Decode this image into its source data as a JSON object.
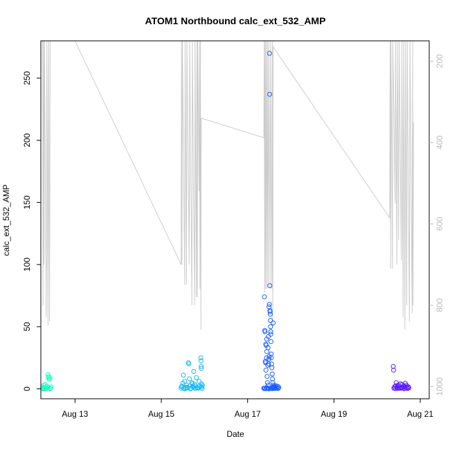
{
  "chart_data": {
    "type": "scatter",
    "title": "ATOM1 Northbound calc_ext_532_AMP",
    "xlabel": "Date",
    "ylabel": "calc_ext_532_AMP",
    "x_axis": {
      "type": "date",
      "range": [
        "2023-08-12T05:00",
        "2023-08-21T05:00"
      ],
      "ticks": [
        {
          "date": "2023-08-13",
          "label": "Aug 13"
        },
        {
          "date": "2023-08-15",
          "label": "Aug 15"
        },
        {
          "date": "2023-08-17",
          "label": "Aug 17"
        },
        {
          "date": "2023-08-19",
          "label": "Aug 19"
        },
        {
          "date": "2023-08-21",
          "label": "Aug 21"
        }
      ]
    },
    "y_axis": {
      "range": [
        -8,
        280
      ],
      "ticks": [
        0,
        50,
        100,
        150,
        200,
        250
      ]
    },
    "y2_axis": {
      "range": [
        1030,
        150
      ],
      "reversed": true,
      "ticks": [
        200,
        400,
        600,
        800,
        1000
      ],
      "color": "#bbbbbb"
    },
    "series": [
      {
        "kind": "points",
        "color": "#1affc0",
        "points": [
          [
            "2023-08-12T06:00",
            0.5
          ],
          [
            "2023-08-12T06:20",
            1.2
          ],
          [
            "2023-08-12T06:40",
            2.8
          ],
          [
            "2023-08-12T07:00",
            0.3
          ],
          [
            "2023-08-12T07:20",
            3.5
          ],
          [
            "2023-08-12T07:40",
            1.0
          ],
          [
            "2023-08-12T08:00",
            0.2
          ],
          [
            "2023-08-12T08:20",
            2.0
          ],
          [
            "2023-08-12T08:40",
            0.8
          ],
          [
            "2023-08-12T09:00",
            11.5
          ],
          [
            "2023-08-12T09:10",
            9.0
          ],
          [
            "2023-08-12T09:20",
            10.0
          ],
          [
            "2023-08-12T09:40",
            7.5
          ],
          [
            "2023-08-12T10:00",
            8.5
          ],
          [
            "2023-08-12T10:20",
            0.5
          ],
          [
            "2023-08-12T10:40",
            1.5
          ],
          [
            "2023-08-12T06:10",
            0.0
          ],
          [
            "2023-08-12T07:10",
            0.1
          ],
          [
            "2023-08-12T08:10",
            0.4
          ],
          [
            "2023-08-12T10:10",
            0.0
          ]
        ]
      },
      {
        "kind": "points",
        "color": "#1ab8f5",
        "points": [
          [
            "2023-08-15T11:00",
            0.5
          ],
          [
            "2023-08-15T11:30",
            2.0
          ],
          [
            "2023-08-15T12:00",
            4.5
          ],
          [
            "2023-08-15T12:30",
            0.3
          ],
          [
            "2023-08-15T13:00",
            6.0
          ],
          [
            "2023-08-15T13:30",
            1.0
          ],
          [
            "2023-08-15T14:00",
            3.0
          ],
          [
            "2023-08-15T14:30",
            0.8
          ],
          [
            "2023-08-15T15:00",
            21.0
          ],
          [
            "2023-08-15T15:20",
            20.0
          ],
          [
            "2023-08-15T15:40",
            8.0
          ],
          [
            "2023-08-15T16:00",
            2.5
          ],
          [
            "2023-08-15T16:30",
            0.5
          ],
          [
            "2023-08-15T17:00",
            5.0
          ],
          [
            "2023-08-15T17:30",
            1.5
          ],
          [
            "2023-08-15T18:00",
            14.0
          ],
          [
            "2023-08-15T18:30",
            3.5
          ],
          [
            "2023-08-15T19:00",
            0.2
          ],
          [
            "2023-08-15T19:30",
            9.0
          ],
          [
            "2023-08-15T20:00",
            1.0
          ],
          [
            "2023-08-15T20:30",
            0.5
          ],
          [
            "2023-08-15T21:00",
            6.0
          ],
          [
            "2023-08-15T21:30",
            2.0
          ],
          [
            "2023-08-15T12:15",
            11.0
          ],
          [
            "2023-08-15T13:15",
            0.0
          ],
          [
            "2023-08-15T14:15",
            1.2
          ],
          [
            "2023-08-15T16:15",
            0.1
          ],
          [
            "2023-08-15T17:15",
            4.0
          ],
          [
            "2023-08-15T19:15",
            2.2
          ],
          [
            "2023-08-15T20:15",
            0.6
          ],
          [
            "2023-08-15T11:15",
            1.8
          ],
          [
            "2023-08-15T18:15",
            0.9
          ],
          [
            "2023-08-15T22:00",
            25.0
          ],
          [
            "2023-08-15T22:05",
            22.5
          ],
          [
            "2023-08-15T22:10",
            18.0
          ],
          [
            "2023-08-15T22:15",
            16.5
          ],
          [
            "2023-08-15T22:20",
            4.0
          ],
          [
            "2023-08-15T22:30",
            1.5
          ],
          [
            "2023-08-15T22:40",
            0.3
          ],
          [
            "2023-08-15T22:50",
            2.8
          ]
        ]
      },
      {
        "kind": "points",
        "color": "#1a5cff",
        "points": [
          [
            "2023-08-17T09:00",
            0.5
          ],
          [
            "2023-08-17T09:20",
            74.0
          ],
          [
            "2023-08-17T09:30",
            47.0
          ],
          [
            "2023-08-17T09:40",
            46.0
          ],
          [
            "2023-08-17T09:50",
            22.0
          ],
          [
            "2023-08-17T10:00",
            21.0
          ],
          [
            "2023-08-17T10:10",
            15.0
          ],
          [
            "2023-08-17T10:20",
            35.0
          ],
          [
            "2023-08-17T10:30",
            25.0
          ],
          [
            "2023-08-17T10:40",
            30.0
          ],
          [
            "2023-08-17T10:50",
            10.0
          ],
          [
            "2023-08-17T11:00",
            5.0
          ],
          [
            "2023-08-17T11:10",
            19.0
          ],
          [
            "2023-08-17T11:20",
            33.0
          ],
          [
            "2023-08-17T11:30",
            42.0
          ],
          [
            "2023-08-17T11:40",
            20.0
          ],
          [
            "2023-08-17T11:50",
            24.0
          ],
          [
            "2023-08-17T12:00",
            26.0
          ],
          [
            "2023-08-17T12:10",
            270.0
          ],
          [
            "2023-08-17T12:15",
            237.0
          ],
          [
            "2023-08-17T12:20",
            83.0
          ],
          [
            "2023-08-17T12:25",
            63.0
          ],
          [
            "2023-08-17T12:30",
            62.0
          ],
          [
            "2023-08-17T12:35",
            60.0
          ],
          [
            "2023-08-17T12:40",
            55.0
          ],
          [
            "2023-08-17T12:45",
            50.0
          ],
          [
            "2023-08-17T12:50",
            46.0
          ],
          [
            "2023-08-17T12:55",
            44.0
          ],
          [
            "2023-08-17T13:00",
            38.0
          ],
          [
            "2023-08-17T13:05",
            28.0
          ],
          [
            "2023-08-17T13:10",
            25.0
          ],
          [
            "2023-08-17T13:20",
            20.0
          ],
          [
            "2023-08-17T13:30",
            17.0
          ],
          [
            "2023-08-17T13:40",
            12.0
          ],
          [
            "2023-08-17T13:50",
            8.0
          ],
          [
            "2023-08-17T14:00",
            5.0
          ],
          [
            "2023-08-17T14:10",
            53.0
          ],
          [
            "2023-08-17T14:20",
            3.0
          ],
          [
            "2023-08-17T14:30",
            1.0
          ],
          [
            "2023-08-17T14:40",
            2.0
          ],
          [
            "2023-08-17T12:05",
            68.0
          ],
          [
            "2023-08-17T11:55",
            66.0
          ],
          [
            "2023-08-17T10:05",
            36.0
          ],
          [
            "2023-08-17T10:35",
            40.0
          ],
          [
            "2023-08-17T09:10",
            0.2
          ],
          [
            "2023-08-17T09:35",
            0.6
          ],
          [
            "2023-08-17T10:15",
            0.1
          ],
          [
            "2023-08-17T10:45",
            0.8
          ],
          [
            "2023-08-17T11:15",
            0.4
          ],
          [
            "2023-08-17T11:45",
            0.0
          ],
          [
            "2023-08-17T12:45",
            0.3
          ],
          [
            "2023-08-17T13:15",
            0.7
          ],
          [
            "2023-08-17T13:45",
            0.2
          ],
          [
            "2023-08-17T14:15",
            0.5
          ],
          [
            "2023-08-17T14:45",
            1.5
          ],
          [
            "2023-08-17T15:00",
            0.2
          ],
          [
            "2023-08-17T15:20",
            0.9
          ],
          [
            "2023-08-17T15:40",
            2.5
          ],
          [
            "2023-08-17T16:00",
            1.0
          ],
          [
            "2023-08-17T16:20",
            0.4
          ],
          [
            "2023-08-17T16:40",
            2.0
          ],
          [
            "2023-08-17T17:00",
            0.3
          ],
          [
            "2023-08-17T17:20",
            1.2
          ],
          [
            "2023-08-17T11:25",
            3.0
          ]
        ]
      },
      {
        "kind": "points",
        "color": "#5a1aff",
        "points": [
          [
            "2023-08-20T09:00",
            18.0
          ],
          [
            "2023-08-20T09:10",
            15.0
          ],
          [
            "2023-08-20T09:20",
            0.5
          ],
          [
            "2023-08-20T09:40",
            1.5
          ],
          [
            "2023-08-20T10:00",
            0.2
          ],
          [
            "2023-08-20T10:20",
            2.5
          ],
          [
            "2023-08-20T10:40",
            5.0
          ],
          [
            "2023-08-20T11:00",
            1.0
          ],
          [
            "2023-08-20T11:20",
            0.3
          ],
          [
            "2023-08-20T11:40",
            3.0
          ],
          [
            "2023-08-20T12:00",
            0.8
          ],
          [
            "2023-08-20T12:20",
            2.0
          ],
          [
            "2023-08-20T12:40",
            0.4
          ],
          [
            "2023-08-20T13:00",
            4.0
          ],
          [
            "2023-08-20T13:20",
            1.2
          ],
          [
            "2023-08-20T13:40",
            0.6
          ],
          [
            "2023-08-20T14:00",
            3.5
          ],
          [
            "2023-08-20T14:20",
            0.9
          ],
          [
            "2023-08-20T14:40",
            2.2
          ],
          [
            "2023-08-20T15:00",
            0.1
          ],
          [
            "2023-08-20T15:20",
            1.8
          ],
          [
            "2023-08-20T15:40",
            4.5
          ],
          [
            "2023-08-20T16:00",
            0.5
          ],
          [
            "2023-08-20T16:20",
            2.8
          ],
          [
            "2023-08-20T16:40",
            1.0
          ],
          [
            "2023-08-20T17:00",
            0.3
          ],
          [
            "2023-08-20T17:20",
            1.5
          ],
          [
            "2023-08-20T17:40",
            0.7
          ]
        ]
      },
      {
        "kind": "line",
        "axis": "y2",
        "color": "#cccccc",
        "points": [
          [
            "2023-08-12T06:00",
            150
          ],
          [
            "2023-08-12T06:15",
            800
          ],
          [
            "2023-08-12T06:30",
            150
          ],
          [
            "2023-08-12T06:45",
            700
          ],
          [
            "2023-08-12T07:00",
            150
          ],
          [
            "2023-08-12T08:00",
            830
          ],
          [
            "2023-08-12T08:20",
            150
          ],
          [
            "2023-08-12T09:00",
            850
          ],
          [
            "2023-08-12T09:20",
            150
          ],
          [
            "2023-08-12T09:50",
            840
          ],
          [
            "2023-08-12T10:10",
            150
          ],
          [
            "2023-08-12T10:30",
            150
          ],
          [
            "2023-08-13T00:00",
            150
          ],
          [
            "2023-08-15T11:00",
            700
          ],
          [
            "2023-08-15T11:15",
            150
          ],
          [
            "2023-08-15T11:30",
            700
          ],
          [
            "2023-08-15T11:45",
            150
          ],
          [
            "2023-08-15T13:00",
            750
          ],
          [
            "2023-08-15T13:15",
            150
          ],
          [
            "2023-08-15T14:00",
            750
          ],
          [
            "2023-08-15T14:15",
            150
          ],
          [
            "2023-08-15T15:30",
            700
          ],
          [
            "2023-08-15T15:45",
            150
          ],
          [
            "2023-08-15T17:00",
            800
          ],
          [
            "2023-08-15T17:15",
            150
          ],
          [
            "2023-08-15T18:30",
            800
          ],
          [
            "2023-08-15T18:45",
            150
          ],
          [
            "2023-08-15T19:30",
            780
          ],
          [
            "2023-08-15T19:45",
            150
          ],
          [
            "2023-08-15T20:00",
            780
          ],
          [
            "2023-08-15T20:15",
            150
          ],
          [
            "2023-08-15T21:00",
            520
          ],
          [
            "2023-08-15T21:15",
            150
          ],
          [
            "2023-08-15T21:30",
            760
          ],
          [
            "2023-08-15T21:45",
            150
          ],
          [
            "2023-08-15T22:00",
            860
          ],
          [
            "2023-08-15T22:10",
            340
          ],
          [
            "2023-08-17T09:00",
            388
          ],
          [
            "2023-08-17T09:15",
            150
          ],
          [
            "2023-08-17T09:30",
            770
          ],
          [
            "2023-08-17T09:45",
            150
          ],
          [
            "2023-08-17T10:00",
            760
          ],
          [
            "2023-08-17T10:15",
            150
          ],
          [
            "2023-08-17T10:45",
            760
          ],
          [
            "2023-08-17T11:00",
            150
          ],
          [
            "2023-08-17T11:30",
            750
          ],
          [
            "2023-08-17T11:45",
            150
          ],
          [
            "2023-08-17T12:30",
            760
          ],
          [
            "2023-08-17T12:45",
            150
          ],
          [
            "2023-08-17T13:30",
            760
          ],
          [
            "2023-08-17T13:45",
            150
          ],
          [
            "2023-08-17T14:00",
            850
          ],
          [
            "2023-08-17T14:10",
            165
          ],
          [
            "2023-08-20T07:00",
            585
          ],
          [
            "2023-08-20T07:15",
            150
          ],
          [
            "2023-08-20T07:30",
            710
          ],
          [
            "2023-08-20T07:45",
            150
          ],
          [
            "2023-08-20T08:30",
            710
          ],
          [
            "2023-08-20T08:45",
            150
          ],
          [
            "2023-08-20T10:00",
            550
          ],
          [
            "2023-08-20T10:15",
            150
          ],
          [
            "2023-08-20T11:00",
            700
          ],
          [
            "2023-08-20T11:15",
            150
          ],
          [
            "2023-08-20T12:00",
            640
          ],
          [
            "2023-08-20T12:15",
            150
          ],
          [
            "2023-08-20T13:30",
            690
          ],
          [
            "2023-08-20T13:45",
            150
          ],
          [
            "2023-08-20T14:30",
            830
          ],
          [
            "2023-08-20T14:45",
            150
          ],
          [
            "2023-08-20T15:30",
            860
          ],
          [
            "2023-08-20T15:45",
            150
          ],
          [
            "2023-08-20T16:30",
            800
          ],
          [
            "2023-08-20T16:45",
            150
          ],
          [
            "2023-08-20T18:00",
            840
          ],
          [
            "2023-08-20T18:15",
            150
          ],
          [
            "2023-08-20T19:30",
            820
          ],
          [
            "2023-08-20T19:45",
            150
          ],
          [
            "2023-08-20T20:00",
            800
          ],
          [
            "2023-08-20T20:15",
            350
          ]
        ]
      }
    ]
  }
}
